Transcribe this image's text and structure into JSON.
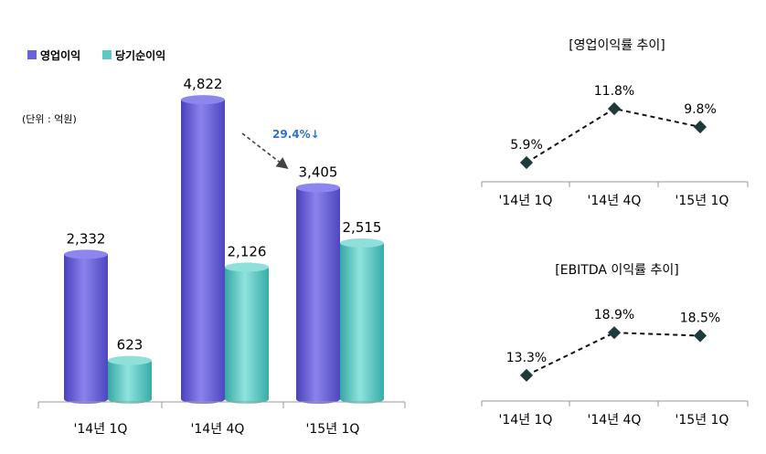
{
  "colors": {
    "operating_profit": "#6a62d8",
    "net_income": "#5cc9c4",
    "change_label": "#2f6fd6",
    "line": "#111111",
    "axis": "#9a9a9a"
  },
  "chart_data": [
    {
      "type": "bar",
      "categories": [
        "'14년 1Q",
        "'14년 4Q",
        "'15년 1Q"
      ],
      "series": [
        {
          "name": "영업이익",
          "values": [
            2332,
            4822,
            3405
          ],
          "labels": [
            "2,332",
            "4,822",
            "3,405"
          ]
        },
        {
          "name": "당기순이익",
          "values": [
            623,
            2126,
            2515
          ],
          "labels": [
            "623",
            "2,126",
            "2,515"
          ]
        }
      ],
      "unit_note": "(단위 : 억원)",
      "annotation": "29.4%↓",
      "ylim": [
        0,
        5000
      ],
      "legend": "top-left",
      "grid": false
    },
    {
      "type": "line",
      "title": "[영업이익률 추이]",
      "categories": [
        "'14년 1Q",
        "'14년 4Q",
        "'15년 1Q"
      ],
      "values": [
        5.9,
        11.8,
        9.8
      ],
      "labels": [
        "5.9%",
        "11.8%",
        "9.8%"
      ],
      "ylim": [
        4,
        13
      ],
      "style": "dashed"
    },
    {
      "type": "line",
      "title": "[EBITDA 이익률 추이]",
      "categories": [
        "'14년 1Q",
        "'14년 4Q",
        "'15년 1Q"
      ],
      "values": [
        13.3,
        18.9,
        18.5
      ],
      "labels": [
        "13.3%",
        "18.9%",
        "18.5%"
      ],
      "ylim": [
        11,
        20
      ],
      "style": "dashed"
    }
  ]
}
